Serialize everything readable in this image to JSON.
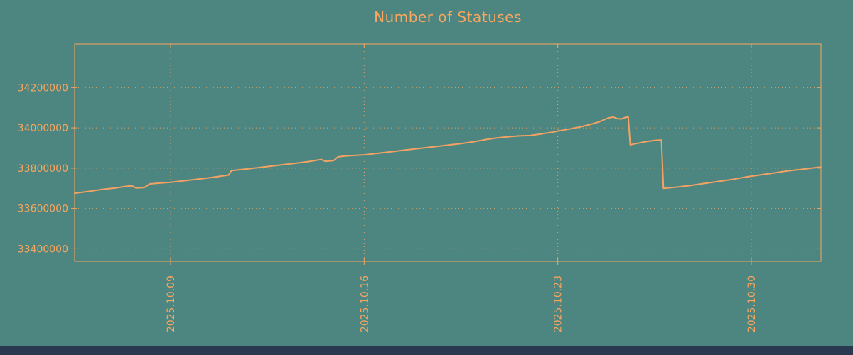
{
  "page": {
    "background": "#4d8680",
    "bottom_bar_color": "#2a3950"
  },
  "chart_data": {
    "type": "line",
    "title": "Number of Statuses",
    "xlabel": "",
    "ylabel": "",
    "accent_color": "#f8a55f",
    "line_color": "#f3a263",
    "background": "#4d8680",
    "grid": true,
    "legend": "none",
    "x_unit": "date (day of 2025.10, >31 = 2025.11)",
    "x_range_days": [
      5.53,
      32.52
    ],
    "y_range": [
      33338000,
      34416000
    ],
    "x_ticks": [
      {
        "day": 9,
        "label": "2025.10.09"
      },
      {
        "day": 16,
        "label": "2025.10.16"
      },
      {
        "day": 23,
        "label": "2025.10.23"
      },
      {
        "day": 30,
        "label": "2025.10.30"
      }
    ],
    "y_ticks": [
      {
        "value": 33400000,
        "label": "33400000"
      },
      {
        "value": 33600000,
        "label": "33600000"
      },
      {
        "value": 33800000,
        "label": "33800000"
      },
      {
        "value": 34000000,
        "label": "34000000"
      },
      {
        "value": 34200000,
        "label": "34200000"
      }
    ],
    "series": [
      {
        "name": "statuses",
        "points": [
          [
            5.53,
            33676000
          ],
          [
            6.0,
            33684000
          ],
          [
            6.5,
            33694000
          ],
          [
            7.0,
            33702000
          ],
          [
            7.4,
            33710000
          ],
          [
            7.6,
            33712000
          ],
          [
            7.75,
            33702000
          ],
          [
            8.05,
            33704000
          ],
          [
            8.25,
            33722000
          ],
          [
            8.6,
            33726000
          ],
          [
            9.0,
            33730000
          ],
          [
            9.5,
            33738000
          ],
          [
            10.0,
            33746000
          ],
          [
            10.5,
            33754000
          ],
          [
            11.0,
            33764000
          ],
          [
            11.1,
            33766000
          ],
          [
            11.2,
            33788000
          ],
          [
            11.6,
            33794000
          ],
          [
            12.0,
            33800000
          ],
          [
            12.5,
            33808000
          ],
          [
            13.0,
            33816000
          ],
          [
            13.5,
            33824000
          ],
          [
            14.0,
            33833000
          ],
          [
            14.3,
            33840000
          ],
          [
            14.45,
            33843000
          ],
          [
            14.6,
            33834000
          ],
          [
            14.9,
            33838000
          ],
          [
            15.05,
            33856000
          ],
          [
            15.3,
            33860000
          ],
          [
            15.7,
            33864000
          ],
          [
            16.0,
            33866000
          ],
          [
            16.5,
            33874000
          ],
          [
            17.0,
            33882000
          ],
          [
            17.5,
            33890000
          ],
          [
            18.0,
            33898000
          ],
          [
            18.5,
            33906000
          ],
          [
            19.0,
            33914000
          ],
          [
            19.5,
            33922000
          ],
          [
            20.0,
            33932000
          ],
          [
            20.4,
            33942000
          ],
          [
            20.8,
            33950000
          ],
          [
            21.2,
            33956000
          ],
          [
            21.6,
            33960000
          ],
          [
            22.0,
            33962000
          ],
          [
            22.4,
            33970000
          ],
          [
            22.8,
            33978000
          ],
          [
            23.0,
            33984000
          ],
          [
            23.4,
            33994000
          ],
          [
            23.8,
            34004000
          ],
          [
            24.2,
            34018000
          ],
          [
            24.5,
            34030000
          ],
          [
            24.8,
            34048000
          ],
          [
            25.0,
            34054000
          ],
          [
            25.15,
            34046000
          ],
          [
            25.3,
            34044000
          ],
          [
            25.45,
            34052000
          ],
          [
            25.55,
            34054000
          ],
          [
            25.62,
            33916000
          ],
          [
            25.9,
            33924000
          ],
          [
            26.2,
            33932000
          ],
          [
            26.5,
            33938000
          ],
          [
            26.75,
            33940000
          ],
          [
            26.82,
            33700000
          ],
          [
            27.3,
            33706000
          ],
          [
            27.8,
            33714000
          ],
          [
            28.3,
            33724000
          ],
          [
            28.8,
            33734000
          ],
          [
            29.3,
            33744000
          ],
          [
            29.8,
            33756000
          ],
          [
            30.3,
            33766000
          ],
          [
            30.8,
            33776000
          ],
          [
            31.3,
            33786000
          ],
          [
            31.8,
            33794000
          ],
          [
            32.52,
            33806000
          ]
        ]
      }
    ]
  }
}
